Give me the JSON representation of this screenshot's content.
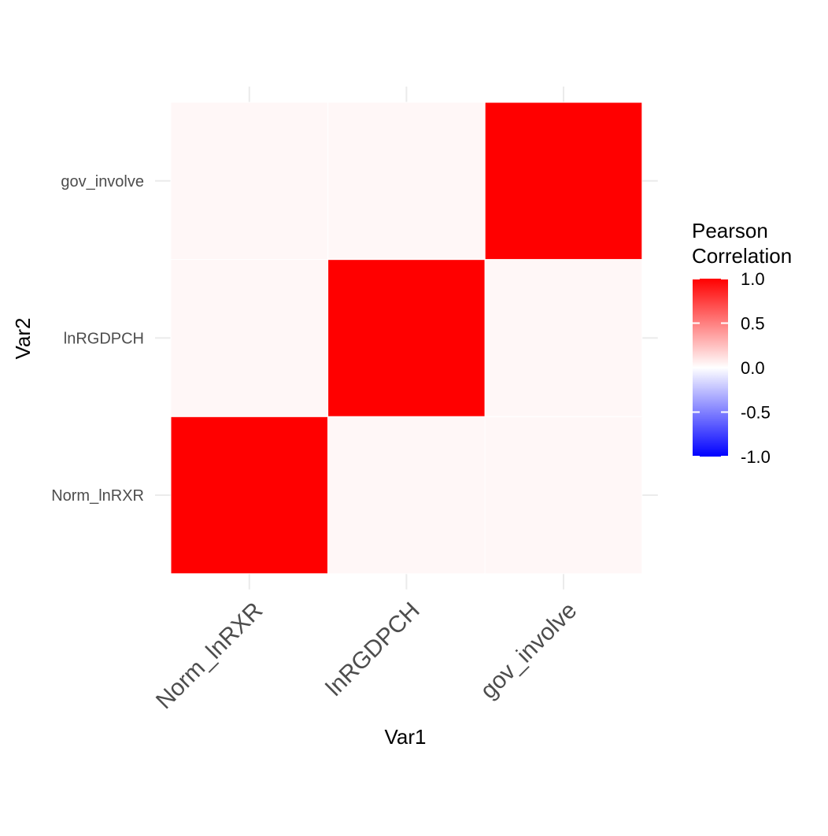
{
  "chart_data": {
    "type": "heatmap",
    "x_categories": [
      "Norm_lnRXR",
      "lnRGDPCH",
      "gov_involve"
    ],
    "y_categories": [
      "Norm_lnRXR",
      "lnRGDPCH",
      "gov_involve"
    ],
    "values": [
      [
        1.0,
        0.03,
        0.03
      ],
      [
        0.03,
        1.0,
        0.03
      ],
      [
        0.03,
        0.03,
        1.0
      ]
    ],
    "xlabel": "Var1",
    "ylabel": "Var2",
    "legend": {
      "title": [
        "Pearson",
        "Correlation"
      ],
      "range": [
        -1,
        1
      ],
      "ticks": [
        1.0,
        0.5,
        0.0,
        -0.5,
        -1.0
      ],
      "tick_labels": [
        "1.0",
        "0.5",
        "0.0",
        "-0.5",
        "-1.0"
      ],
      "placement": "right"
    },
    "colors": {
      "low": "#0000ff",
      "mid": "#ffffff",
      "high": "#ff0000",
      "grid": "#ebebeb"
    },
    "grid": true
  }
}
